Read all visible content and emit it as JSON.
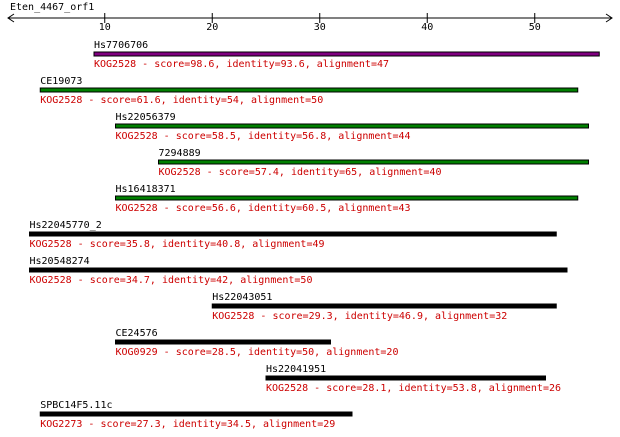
{
  "chart_data": {
    "type": "alignment",
    "title": "Eten_4467_orf1",
    "xlim": [
      1,
      57
    ],
    "xticks": [
      10,
      20,
      30,
      40,
      50
    ],
    "hits": [
      {
        "name": "Hs7706706",
        "description": "KOG2528 - score=98.6, identity=93.6, alignment=47",
        "start": 9,
        "end": 56,
        "color": "#800080"
      },
      {
        "name": "CE19073",
        "description": "KOG2528 - score=61.6, identity=54, alignment=50",
        "start": 4,
        "end": 54,
        "color": "#008000"
      },
      {
        "name": "Hs22056379",
        "description": "KOG2528 - score=58.5, identity=56.8, alignment=44",
        "start": 11,
        "end": 55,
        "color": "#008000"
      },
      {
        "name": "7294889",
        "description": "KOG2528 - score=57.4, identity=65, alignment=40",
        "start": 15,
        "end": 55,
        "color": "#008000"
      },
      {
        "name": "Hs16418371",
        "description": "KOG2528 - score=56.6, identity=60.5, alignment=43",
        "start": 11,
        "end": 54,
        "color": "#008000"
      },
      {
        "name": "Hs22045770_2",
        "description": "KOG2528 - score=35.8, identity=40.8, alignment=49",
        "start": 3,
        "end": 52,
        "color": "#000000"
      },
      {
        "name": "Hs20548274",
        "description": "KOG2528 - score=34.7, identity=42, alignment=50",
        "start": 3,
        "end": 53,
        "color": "#000000"
      },
      {
        "name": "Hs22043051",
        "description": "KOG2528 - score=29.3, identity=46.9, alignment=32",
        "start": 20,
        "end": 52,
        "color": "#000000"
      },
      {
        "name": "CE24576",
        "description": "KOG0929 - score=28.5, identity=50, alignment=20",
        "start": 11,
        "end": 31,
        "color": "#000000"
      },
      {
        "name": "Hs22041951",
        "description": "KOG2528 - score=28.1, identity=53.8, alignment=26",
        "start": 25,
        "end": 51,
        "color": "#000000"
      },
      {
        "name": "SPBC14F5.11c",
        "description": "KOG2273 - score=27.3, identity=34.5, alignment=29",
        "start": 4,
        "end": 33,
        "color": "#000000"
      }
    ]
  }
}
